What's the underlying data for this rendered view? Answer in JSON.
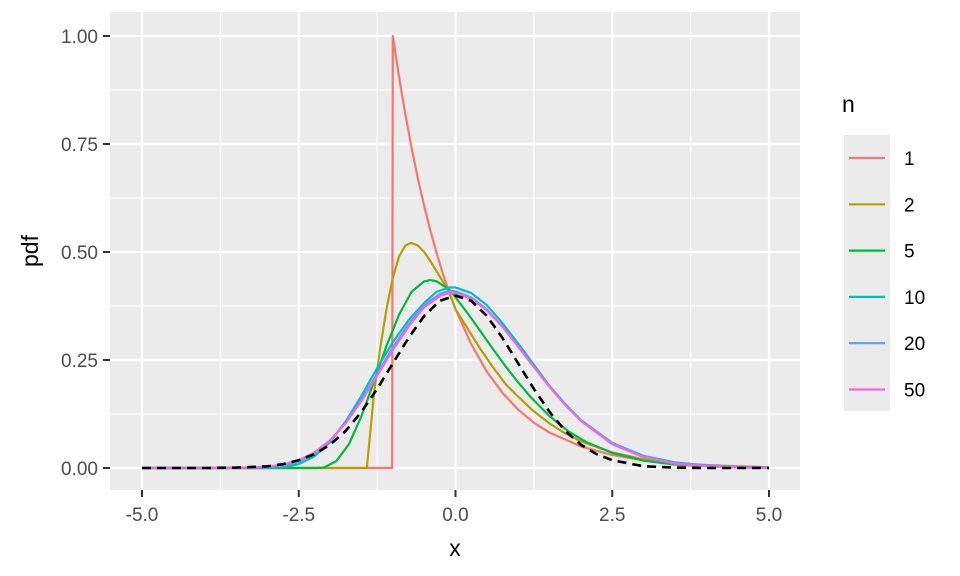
{
  "chart_data": {
    "type": "line",
    "title": "",
    "xlabel": "x",
    "ylabel": "pdf",
    "xlim": [
      -5,
      5
    ],
    "ylim": [
      0,
      1
    ],
    "x_ticks": [
      -5,
      -2.5,
      0,
      2.5,
      5
    ],
    "x_tick_labels": [
      "-5.0",
      "-2.5",
      "0.0",
      "2.5",
      "5.0"
    ],
    "y_ticks": [
      0,
      0.25,
      0.5,
      0.75,
      1
    ],
    "y_tick_labels": [
      "0.00",
      "0.25",
      "0.50",
      "0.75",
      "1.00"
    ],
    "grid": true,
    "legend": {
      "title": "n",
      "position": "right"
    },
    "series": [
      {
        "name": "1",
        "color": "#F8766D",
        "dash": false,
        "x": [
          -5,
          -1.5,
          -1.01,
          -1,
          -0.9,
          -0.8,
          -0.7,
          -0.6,
          -0.5,
          -0.4,
          -0.3,
          -0.2,
          -0.1,
          0,
          0.25,
          0.5,
          0.75,
          1,
          1.25,
          1.5,
          2,
          2.5,
          3,
          3.5,
          4,
          4.5,
          5
        ],
        "y": [
          0,
          0,
          0,
          1.0,
          0.905,
          0.819,
          0.741,
          0.67,
          0.607,
          0.549,
          0.497,
          0.449,
          0.407,
          0.368,
          0.287,
          0.223,
          0.174,
          0.135,
          0.105,
          0.082,
          0.05,
          0.03,
          0.018,
          0.011,
          0.007,
          0.004,
          0.002
        ]
      },
      {
        "name": "2",
        "color": "#B79F00",
        "dash": false,
        "x": [
          -5,
          -1.5,
          -1.414,
          -1.3,
          -1.2,
          -1.1,
          -1.0,
          -0.9,
          -0.8,
          -0.707,
          -0.6,
          -0.5,
          -0.4,
          -0.3,
          -0.2,
          -0.1,
          0,
          0.2,
          0.4,
          0.6,
          0.8,
          1.0,
          1.25,
          1.5,
          1.75,
          2.0,
          2.5,
          3,
          3.5,
          4,
          4.5,
          5
        ],
        "y": [
          0,
          0,
          0,
          0.172,
          0.279,
          0.368,
          0.44,
          0.49,
          0.515,
          0.521,
          0.515,
          0.5,
          0.479,
          0.455,
          0.431,
          0.406,
          0.368,
          0.321,
          0.275,
          0.233,
          0.194,
          0.165,
          0.131,
          0.103,
          0.08,
          0.062,
          0.036,
          0.02,
          0.011,
          0.006,
          0.003,
          0.002
        ]
      },
      {
        "name": "5",
        "color": "#00BA38",
        "dash": false,
        "x": [
          -5,
          -2.3,
          -2.236,
          -2.1,
          -1.9,
          -1.7,
          -1.5,
          -1.3,
          -1.1,
          -0.9,
          -0.7,
          -0.5,
          -0.4,
          -0.3,
          -0.1,
          0,
          0.2,
          0.4,
          0.6,
          0.8,
          1.0,
          1.2,
          1.5,
          1.8,
          2.1,
          2.5,
          3,
          3.5,
          4,
          4.5,
          5
        ],
        "y": [
          0,
          0,
          0,
          0.001,
          0.016,
          0.055,
          0.12,
          0.2,
          0.283,
          0.355,
          0.408,
          0.432,
          0.435,
          0.432,
          0.413,
          0.395,
          0.357,
          0.316,
          0.275,
          0.235,
          0.198,
          0.164,
          0.12,
          0.085,
          0.059,
          0.035,
          0.017,
          0.008,
          0.004,
          0.002,
          0.001
        ]
      },
      {
        "name": "10",
        "color": "#00BFC4",
        "dash": false,
        "x": [
          -5,
          -3.162,
          -3,
          -2.75,
          -2.5,
          -2.25,
          -2.0,
          -1.75,
          -1.5,
          -1.25,
          -1.0,
          -0.75,
          -0.5,
          -0.3,
          -0.1,
          0,
          0.25,
          0.5,
          0.75,
          1.0,
          1.25,
          1.5,
          1.75,
          2.0,
          2.5,
          3,
          3.5,
          4,
          4.5,
          5
        ],
        "y": [
          0,
          0,
          0.0,
          0.002,
          0.009,
          0.027,
          0.06,
          0.108,
          0.167,
          0.231,
          0.291,
          0.342,
          0.382,
          0.408,
          0.418,
          0.418,
          0.405,
          0.377,
          0.335,
          0.288,
          0.239,
          0.19,
          0.148,
          0.111,
          0.058,
          0.028,
          0.013,
          0.006,
          0.002,
          0.001
        ]
      },
      {
        "name": "20",
        "color": "#619CFF",
        "dash": false,
        "x": [
          -5,
          -4.5,
          -4,
          -3.5,
          -3,
          -2.75,
          -2.5,
          -2.25,
          -2.0,
          -1.75,
          -1.5,
          -1.25,
          -1.0,
          -0.75,
          -0.5,
          -0.25,
          -0.1,
          0,
          0.25,
          0.5,
          0.75,
          1.0,
          1.25,
          1.5,
          1.75,
          2.0,
          2.5,
          3,
          3.5,
          4,
          4.5,
          5
        ],
        "y": [
          0,
          0,
          0,
          0.0,
          0.002,
          0.006,
          0.015,
          0.033,
          0.063,
          0.105,
          0.158,
          0.218,
          0.279,
          0.333,
          0.377,
          0.403,
          0.41,
          0.409,
          0.395,
          0.367,
          0.327,
          0.281,
          0.234,
          0.188,
          0.146,
          0.11,
          0.058,
          0.027,
          0.012,
          0.005,
          0.002,
          0.001
        ]
      },
      {
        "name": "50",
        "color": "#F564E3",
        "dash": false,
        "x": [
          -5,
          -4.5,
          -4,
          -3.5,
          -3,
          -2.75,
          -2.5,
          -2.25,
          -2.0,
          -1.75,
          -1.5,
          -1.25,
          -1.0,
          -0.75,
          -0.5,
          -0.25,
          -0.1,
          0,
          0.25,
          0.5,
          0.75,
          1.0,
          1.25,
          1.5,
          1.75,
          2.0,
          2.5,
          3,
          3.5,
          4,
          4.5,
          5
        ],
        "y": [
          0,
          0,
          0.0,
          0.0,
          0.003,
          0.008,
          0.018,
          0.036,
          0.064,
          0.104,
          0.155,
          0.214,
          0.273,
          0.327,
          0.372,
          0.398,
          0.405,
          0.405,
          0.392,
          0.365,
          0.327,
          0.281,
          0.234,
          0.188,
          0.146,
          0.109,
          0.055,
          0.025,
          0.01,
          0.004,
          0.001,
          0.0
        ]
      },
      {
        "name": "",
        "color": "#000000",
        "dash": true,
        "x": [
          -5,
          -4.5,
          -4,
          -3.5,
          -3,
          -2.75,
          -2.5,
          -2.25,
          -2.0,
          -1.75,
          -1.5,
          -1.25,
          -1.0,
          -0.75,
          -0.5,
          -0.25,
          0,
          0.25,
          0.5,
          0.75,
          1.0,
          1.25,
          1.5,
          1.75,
          2.0,
          2.25,
          2.5,
          3,
          3.5,
          4,
          4.5,
          5
        ],
        "y": [
          0.0,
          0.0,
          0.0,
          0.001,
          0.004,
          0.009,
          0.018,
          0.032,
          0.054,
          0.086,
          0.13,
          0.183,
          0.242,
          0.301,
          0.352,
          0.387,
          0.399,
          0.387,
          0.352,
          0.301,
          0.242,
          0.183,
          0.13,
          0.086,
          0.054,
          0.032,
          0.018,
          0.004,
          0.001,
          0.0,
          0.0,
          0.0
        ]
      }
    ]
  }
}
